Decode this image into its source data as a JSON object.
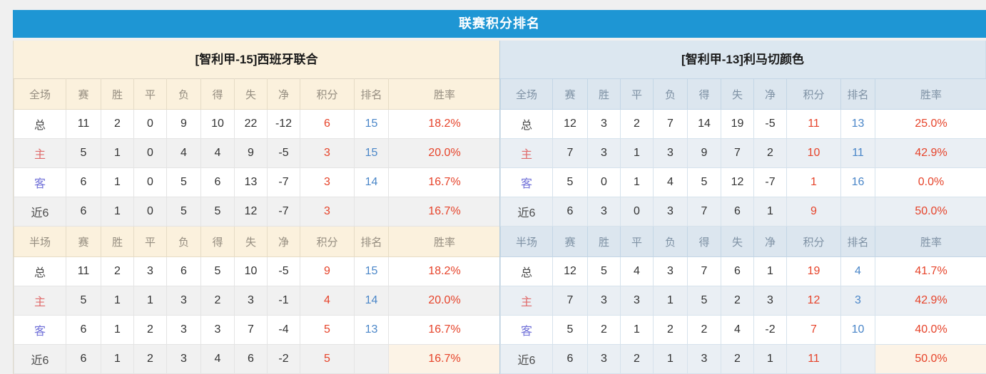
{
  "title_bar": {
    "text": "联赛积分排名"
  },
  "colors": {
    "accent_blue": "#1e96d4",
    "points_red": "#e6432a",
    "rank_blue": "#4a86c8",
    "home_red": "#e06a6a",
    "away_blue": "#7070d8",
    "cream_bg": "#fbf1dd",
    "blue_bg": "#dce6ef"
  },
  "columns": {
    "stats": [
      "赛",
      "胜",
      "平",
      "负",
      "得",
      "失",
      "净",
      "积分",
      "排名",
      "胜率"
    ]
  },
  "teams": [
    {
      "name": "[智利甲-15]西班牙联合",
      "sections": [
        {
          "label": "全场",
          "rows": [
            {
              "label": "总",
              "type": "total",
              "values": [
                "11",
                "2",
                "0",
                "9",
                "10",
                "22",
                "-12",
                "6",
                "15",
                "18.2%"
              ]
            },
            {
              "label": "主",
              "type": "home",
              "values": [
                "5",
                "1",
                "0",
                "4",
                "4",
                "9",
                "-5",
                "3",
                "15",
                "20.0%"
              ]
            },
            {
              "label": "客",
              "type": "away",
              "values": [
                "6",
                "1",
                "0",
                "5",
                "6",
                "13",
                "-7",
                "3",
                "14",
                "16.7%"
              ]
            },
            {
              "label": "近6",
              "type": "recent",
              "values": [
                "6",
                "1",
                "0",
                "5",
                "5",
                "12",
                "-7",
                "3",
                "",
                "16.7%"
              ]
            }
          ]
        },
        {
          "label": "半场",
          "rows": [
            {
              "label": "总",
              "type": "total",
              "values": [
                "11",
                "2",
                "3",
                "6",
                "5",
                "10",
                "-5",
                "9",
                "15",
                "18.2%"
              ]
            },
            {
              "label": "主",
              "type": "home",
              "values": [
                "5",
                "1",
                "1",
                "3",
                "2",
                "3",
                "-1",
                "4",
                "14",
                "20.0%"
              ]
            },
            {
              "label": "客",
              "type": "away",
              "values": [
                "6",
                "1",
                "2",
                "3",
                "3",
                "7",
                "-4",
                "5",
                "13",
                "16.7%"
              ]
            },
            {
              "label": "近6",
              "type": "recent",
              "values": [
                "6",
                "1",
                "2",
                "3",
                "4",
                "6",
                "-2",
                "5",
                "",
                "16.7%"
              ]
            }
          ]
        }
      ]
    },
    {
      "name": "[智利甲-13]利马切颜色",
      "sections": [
        {
          "label": "全场",
          "rows": [
            {
              "label": "总",
              "type": "total",
              "values": [
                "12",
                "3",
                "2",
                "7",
                "14",
                "19",
                "-5",
                "11",
                "13",
                "25.0%"
              ]
            },
            {
              "label": "主",
              "type": "home",
              "values": [
                "7",
                "3",
                "1",
                "3",
                "9",
                "7",
                "2",
                "10",
                "11",
                "42.9%"
              ]
            },
            {
              "label": "客",
              "type": "away",
              "values": [
                "5",
                "0",
                "1",
                "4",
                "5",
                "12",
                "-7",
                "1",
                "16",
                "0.0%"
              ]
            },
            {
              "label": "近6",
              "type": "recent",
              "values": [
                "6",
                "3",
                "0",
                "3",
                "7",
                "6",
                "1",
                "9",
                "",
                "50.0%"
              ]
            }
          ]
        },
        {
          "label": "半场",
          "rows": [
            {
              "label": "总",
              "type": "total",
              "values": [
                "12",
                "5",
                "4",
                "3",
                "7",
                "6",
                "1",
                "19",
                "4",
                "41.7%"
              ]
            },
            {
              "label": "主",
              "type": "home",
              "values": [
                "7",
                "3",
                "3",
                "1",
                "5",
                "2",
                "3",
                "12",
                "3",
                "42.9%"
              ]
            },
            {
              "label": "客",
              "type": "away",
              "values": [
                "5",
                "2",
                "1",
                "2",
                "2",
                "4",
                "-2",
                "7",
                "10",
                "40.0%"
              ]
            },
            {
              "label": "近6",
              "type": "recent",
              "values": [
                "6",
                "3",
                "2",
                "1",
                "3",
                "2",
                "1",
                "11",
                "",
                "50.0%"
              ]
            }
          ]
        }
      ]
    }
  ]
}
